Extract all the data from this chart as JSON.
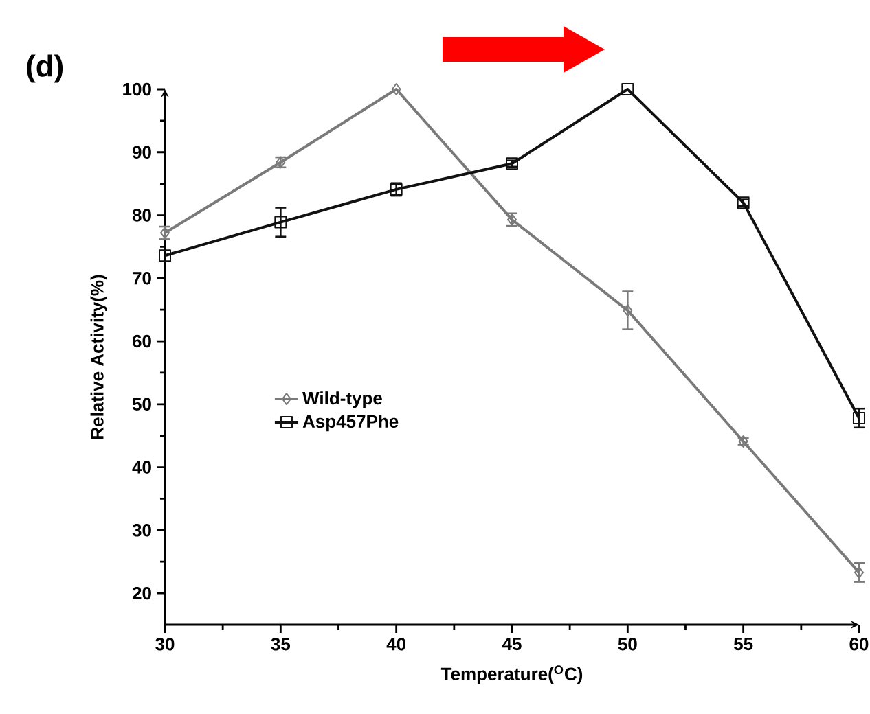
{
  "chart_data": {
    "type": "line",
    "xlabel": "Temperature($^{O}$C)",
    "ylabel": "Relative Activity(%)",
    "x": [
      30,
      35,
      40,
      45,
      50,
      55,
      60
    ],
    "series": [
      {
        "name": "Wild-type",
        "color": "#7a7a7a",
        "marker": "diamond",
        "values": [
          77.2,
          88.4,
          100,
          79.3,
          64.9,
          44.1,
          23.3
        ],
        "errors": [
          1,
          0.8,
          null,
          1,
          3,
          0.5,
          1.5
        ]
      },
      {
        "name": "Asp457Phe",
        "color": "#111111",
        "marker": "square",
        "values": [
          73.6,
          78.9,
          84.1,
          88.2,
          100,
          82,
          47.8
        ],
        "errors": [
          null,
          2.3,
          1,
          0.5,
          null,
          0.5,
          1.5
        ]
      }
    ],
    "xlim": [
      30,
      60
    ],
    "xticks": [
      30,
      35,
      40,
      45,
      50,
      55,
      60
    ],
    "ylim": [
      15,
      100
    ],
    "yticks": [
      20,
      30,
      40,
      50,
      60,
      70,
      80,
      90,
      100
    ],
    "grid": false,
    "legend": "left",
    "line_style": "solid",
    "annotations": [
      "(d)"
    ]
  }
}
